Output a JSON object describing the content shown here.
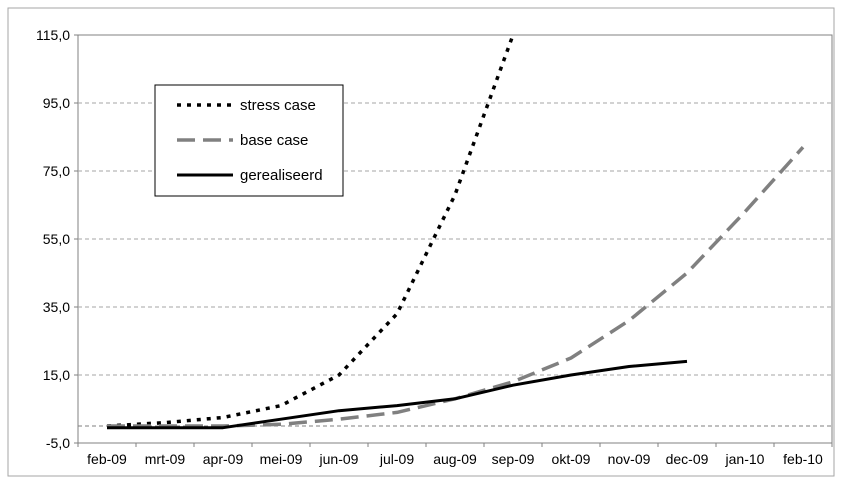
{
  "chart_data": {
    "type": "line",
    "title": "",
    "xlabel": "",
    "ylabel": "",
    "categories": [
      "feb-09",
      "mrt-09",
      "apr-09",
      "mei-09",
      "jun-09",
      "jul-09",
      "aug-09",
      "sep-09",
      "okt-09",
      "nov-09",
      "dec-09",
      "jan-10",
      "feb-10"
    ],
    "ylim": [
      -5,
      115
    ],
    "yticks": [
      "-5,0",
      "15,0",
      "35,0",
      "55,0",
      "75,0",
      "95,0",
      "115,0"
    ],
    "grid": true,
    "legend_position": "top-left",
    "series": [
      {
        "name": "stress case",
        "style": "dotted",
        "color": "#000000",
        "values": [
          0,
          1,
          2.5,
          6,
          15,
          33,
          68,
          115,
          null,
          null,
          null,
          null,
          null
        ]
      },
      {
        "name": "base case",
        "style": "dashed",
        "color": "#808080",
        "values": [
          0,
          0,
          0,
          0.5,
          2,
          4,
          8,
          13,
          20,
          31,
          45,
          63,
          82
        ]
      },
      {
        "name": "gerealiseerd",
        "style": "solid",
        "color": "#000000",
        "values": [
          -0.5,
          -0.5,
          -0.5,
          2,
          4.5,
          6,
          8,
          12,
          15,
          17.5,
          19,
          null,
          null
        ]
      }
    ]
  }
}
